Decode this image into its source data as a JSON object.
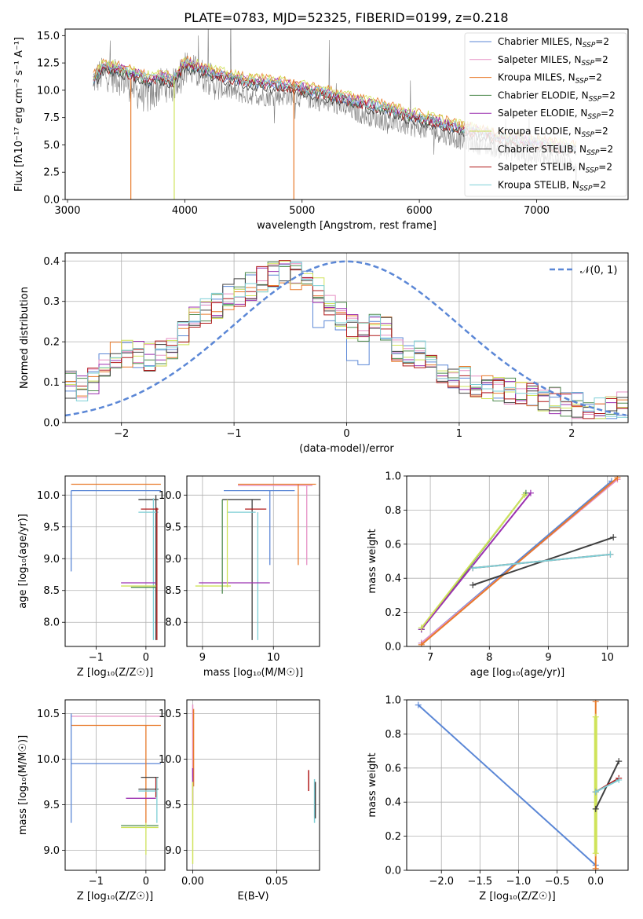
{
  "figure": {
    "title": "PLATE=0783, MJD=52325, FIBERID=0199, z=0.218"
  },
  "colors": {
    "Chabrier MILES": "#5b87d6",
    "Salpeter MILES": "#e58fc4",
    "Kroupa MILES": "#e87a2a",
    "Chabrier ELODIE": "#4f8b4f",
    "Salpeter ELODIE": "#9b30b0",
    "Kroupa ELODIE": "#cfe35a",
    "Chabrier STELIB": "#404040",
    "Salpeter STELIB": "#b01818",
    "Kroupa STELIB": "#7ecfd6",
    "data": "#808080",
    "normal": "#5b87d6"
  },
  "chart_data": [
    {
      "id": "spectrum",
      "type": "line",
      "xlabel": "wavelength [Angstrom, rest frame]",
      "ylabel": "Flux [fλ10⁻¹⁷ erg cm⁻² s⁻¹ A⁻¹]",
      "xlim": [
        2980,
        7780
      ],
      "ylim": [
        0,
        15.6
      ],
      "xticks": [
        3000,
        4000,
        5000,
        6000,
        7000
      ],
      "yticks": [
        0.0,
        2.5,
        5.0,
        7.5,
        10.0,
        12.5,
        15.0
      ],
      "grid": false,
      "legend_position": "top-right",
      "legend": [
        "Chabrier MILES, N_SSP=2",
        "Salpeter MILES, N_SSP=2",
        "Kroupa MILES, N_SSP=2",
        "Chabrier ELODIE, N_SSP=2",
        "Salpeter ELODIE, N_SSP=2",
        "Kroupa ELODIE, N_SSP=2",
        "Chabrier STELIB, N_SSP=2",
        "Salpeter STELIB, N_SSP=2",
        "Kroupa STELIB, N_SSP=2"
      ],
      "series": [
        {
          "name": "data",
          "x": [
            3200,
            3300,
            3400,
            3500,
            3600,
            3700,
            3800,
            3900,
            4000,
            4100,
            4200,
            4300,
            4500,
            4700,
            4900,
            5100,
            5300,
            5500,
            5700,
            5900,
            6100,
            6300,
            6500,
            6700,
            6900,
            7100,
            7300
          ],
          "y": [
            10.8,
            11.5,
            11.3,
            10.8,
            9.8,
            9.3,
            10.5,
            10.4,
            12.2,
            11.6,
            11.2,
            10.2,
            9.6,
            9.4,
            9.5,
            9.1,
            8.6,
            7.8,
            7.2,
            6.7,
            6.3,
            5.6,
            5.0,
            4.6,
            4.1,
            3.7,
            3.3
          ]
        },
        {
          "name": "model",
          "x": [
            3200,
            3300,
            3400,
            3500,
            3600,
            3700,
            3800,
            3900,
            4000,
            4100,
            4200,
            4300,
            4500,
            4700,
            4900,
            5100,
            5300,
            5500,
            5700,
            5900,
            6100,
            6300,
            6500,
            6700,
            6900,
            7100,
            7300
          ],
          "y": [
            10.7,
            12.3,
            12.1,
            11.8,
            11.5,
            11.1,
            11.3,
            11.0,
            12.6,
            12.2,
            11.9,
            11.5,
            11.0,
            10.8,
            10.5,
            10.1,
            9.6,
            9.0,
            8.5,
            7.9,
            7.4,
            6.8,
            6.3,
            5.8,
            5.5,
            5.1,
            4.8
          ]
        }
      ]
    },
    {
      "id": "residuals",
      "type": "line",
      "xlabel": "(data-model)/error",
      "ylabel": "Normed distribution",
      "xlim": [
        -2.5,
        2.5
      ],
      "ylim": [
        0,
        0.42
      ],
      "xticks": [
        -2,
        -1,
        0,
        1,
        2
      ],
      "yticks": [
        0.0,
        0.1,
        0.2,
        0.3,
        0.4
      ],
      "grid": true,
      "legend_position": "top-right",
      "legend": [
        "𝒩(0, 1)"
      ],
      "series": [
        {
          "name": "hist",
          "x": [
            -2.5,
            -2.3,
            -2.1,
            -1.9,
            -1.7,
            -1.5,
            -1.3,
            -1.1,
            -0.9,
            -0.7,
            -0.5,
            -0.3,
            -0.1,
            0.1,
            0.3,
            0.5,
            0.7,
            0.9,
            1.1,
            1.3,
            1.5,
            1.7,
            1.9,
            2.1,
            2.3,
            2.5
          ],
          "y": [
            0.1,
            0.08,
            0.17,
            0.17,
            0.16,
            0.2,
            0.27,
            0.3,
            0.33,
            0.36,
            0.37,
            0.34,
            0.28,
            0.22,
            0.25,
            0.16,
            0.17,
            0.12,
            0.1,
            0.08,
            0.08,
            0.06,
            0.05,
            0.04,
            0.03,
            0.05
          ]
        }
      ]
    },
    {
      "id": "age-vs-Z",
      "type": "line",
      "xlabel": "Z [log₁₀(Z/Z☉)]",
      "ylabel": "age  [log₁₀(age/yr)]",
      "xlim": [
        -1.62,
        0.38
      ],
      "ylim": [
        7.62,
        10.3
      ],
      "xticks": [
        -1,
        0
      ],
      "yticks": [
        8.0,
        8.5,
        9.0,
        9.5,
        10.0
      ],
      "grid": true
    },
    {
      "id": "age-vs-mass",
      "type": "line",
      "xlabel": "mass [log₁₀(M/M☉)]",
      "ylabel": "",
      "xlim": [
        8.78,
        10.65
      ],
      "ylim": [
        7.62,
        10.3
      ],
      "xticks": [
        9,
        10
      ],
      "yticks": [
        8.0,
        8.5,
        9.0,
        9.5,
        10.0
      ],
      "grid": true
    },
    {
      "id": "weight-vs-age",
      "type": "line",
      "xlabel": "age  [log₁₀(age/yr)]",
      "ylabel": "mass weight",
      "xlim": [
        6.6,
        10.35
      ],
      "ylim": [
        0,
        1.0
      ],
      "xticks": [
        7,
        8,
        9,
        10
      ],
      "yticks": [
        0.0,
        0.2,
        0.4,
        0.6,
        0.8,
        1.0
      ],
      "grid": true,
      "series": [
        {
          "name": "Chabrier MILES",
          "x": [
            6.85,
            10.07
          ],
          "y": [
            0.02,
            0.97
          ]
        },
        {
          "name": "Salpeter MILES",
          "x": [
            6.85,
            10.17
          ],
          "y": [
            0.02,
            0.98
          ]
        },
        {
          "name": "Kroupa MILES",
          "x": [
            6.85,
            10.17
          ],
          "y": [
            0.01,
            0.99
          ]
        },
        {
          "name": "Chabrier ELODIE",
          "x": [
            6.85,
            8.62
          ],
          "y": [
            0.1,
            0.9
          ]
        },
        {
          "name": "Salpeter ELODIE",
          "x": [
            6.85,
            8.7
          ],
          "y": [
            0.1,
            0.9
          ]
        },
        {
          "name": "Kroupa ELODIE",
          "x": [
            6.85,
            8.6
          ],
          "y": [
            0.11,
            0.89
          ]
        },
        {
          "name": "Chabrier STELIB",
          "x": [
            7.72,
            10.1
          ],
          "y": [
            0.36,
            0.64
          ]
        },
        {
          "name": "Salpeter STELIB",
          "x": [
            7.72,
            10.05
          ],
          "y": [
            0.46,
            0.54
          ]
        },
        {
          "name": "Kroupa STELIB",
          "x": [
            7.72,
            10.05
          ],
          "y": [
            0.46,
            0.54
          ]
        }
      ]
    },
    {
      "id": "mass-vs-Z",
      "type": "line",
      "xlabel": "Z [log₁₀(Z/Z☉)]",
      "ylabel": "mass [log₁₀(M/M☉)]",
      "xlim": [
        -1.62,
        0.38
      ],
      "ylim": [
        8.78,
        10.65
      ],
      "xticks": [
        -1,
        0
      ],
      "yticks": [
        9.0,
        9.5,
        10.0,
        10.5
      ],
      "grid": true
    },
    {
      "id": "mass-vs-EBV",
      "type": "line",
      "xlabel": "E(B-V)",
      "ylabel": "",
      "xlim": [
        -0.0035,
        0.0755
      ],
      "ylim": [
        8.78,
        10.65
      ],
      "xticks": [
        0.0,
        0.05
      ],
      "yticks": [
        9.0,
        9.5,
        10.0,
        10.5
      ],
      "grid": true
    },
    {
      "id": "weight-vs-Z",
      "type": "line",
      "xlabel": "Z [log₁₀(Z/Z☉)]",
      "ylabel": "mass weight",
      "xlim": [
        -2.45,
        0.42
      ],
      "ylim": [
        0,
        1.0
      ],
      "xticks": [
        -2.0,
        -1.5,
        -1.0,
        -0.5,
        0.0
      ],
      "yticks": [
        0.0,
        0.2,
        0.4,
        0.6,
        0.8,
        1.0
      ],
      "grid": true,
      "series": [
        {
          "name": "Chabrier MILES",
          "x": [
            -2.3,
            0.0
          ],
          "y": [
            0.97,
            0.03
          ]
        },
        {
          "name": "Kroupa MILES",
          "x": [
            0.0,
            0.0
          ],
          "y": [
            0.01,
            0.99
          ]
        },
        {
          "name": "Kroupa ELODIE",
          "x": [
            0.0,
            0.0
          ],
          "y": [
            0.1,
            0.9
          ]
        },
        {
          "name": "Chabrier STELIB",
          "x": [
            0.0,
            0.3
          ],
          "y": [
            0.36,
            0.64
          ]
        },
        {
          "name": "Salpeter STELIB",
          "x": [
            0.0,
            0.3
          ],
          "y": [
            0.46,
            0.54
          ]
        },
        {
          "name": "Kroupa STELIB",
          "x": [
            0.0,
            0.3
          ],
          "y": [
            0.46,
            0.53
          ]
        }
      ]
    }
  ]
}
